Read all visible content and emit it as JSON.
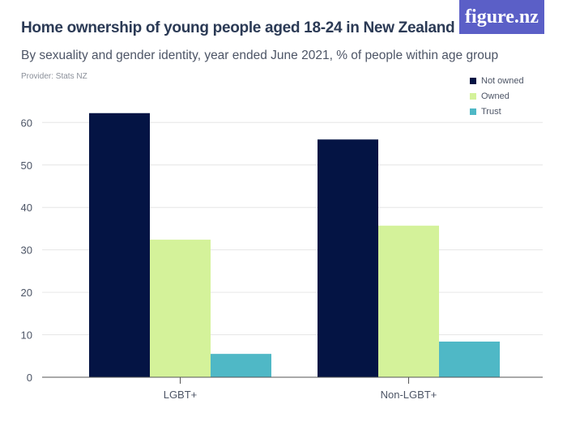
{
  "title": "Home ownership of young people aged 18-24 in New Zealand",
  "subtitle": "By sexuality and gender identity, year ended June 2021, % of people within age group",
  "provider": "Provider: Stats NZ",
  "logo": "figure.nz",
  "chart_data": {
    "type": "bar",
    "categories": [
      "LGBT+",
      "Non-LGBT+"
    ],
    "series": [
      {
        "name": "Not owned",
        "color": "#041444",
        "values": [
          62.2,
          56.0
        ]
      },
      {
        "name": "Owned",
        "color": "#d4f29a",
        "values": [
          32.4,
          35.7
        ]
      },
      {
        "name": "Trust",
        "color": "#4fb8c6",
        "values": [
          5.5,
          8.4
        ]
      }
    ],
    "ylim": [
      0,
      60
    ],
    "yticks": [
      0,
      10,
      20,
      30,
      40,
      50,
      60
    ],
    "grid": true,
    "legend": "top-right"
  }
}
